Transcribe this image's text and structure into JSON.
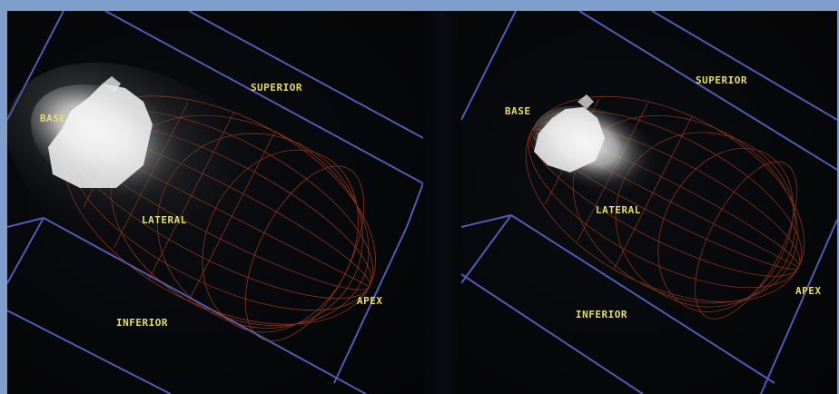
{
  "views": [
    {
      "id": "left",
      "labels": {
        "base": "BASE",
        "superior": "SUPERIOR",
        "lateral": "LATERAL",
        "apex": "APEX",
        "inferior": "INFERIOR"
      }
    },
    {
      "id": "right",
      "labels": {
        "base": "BASE",
        "superior": "SUPERIOR",
        "lateral": "LATERAL",
        "apex": "APEX",
        "inferior": "INFERIOR"
      }
    }
  ],
  "colors": {
    "background": "#7f9ecb",
    "panel": "#060709",
    "label": "#e8dd6a",
    "bounding_box": "#5a64c8",
    "wireframe": "#b8431f"
  }
}
